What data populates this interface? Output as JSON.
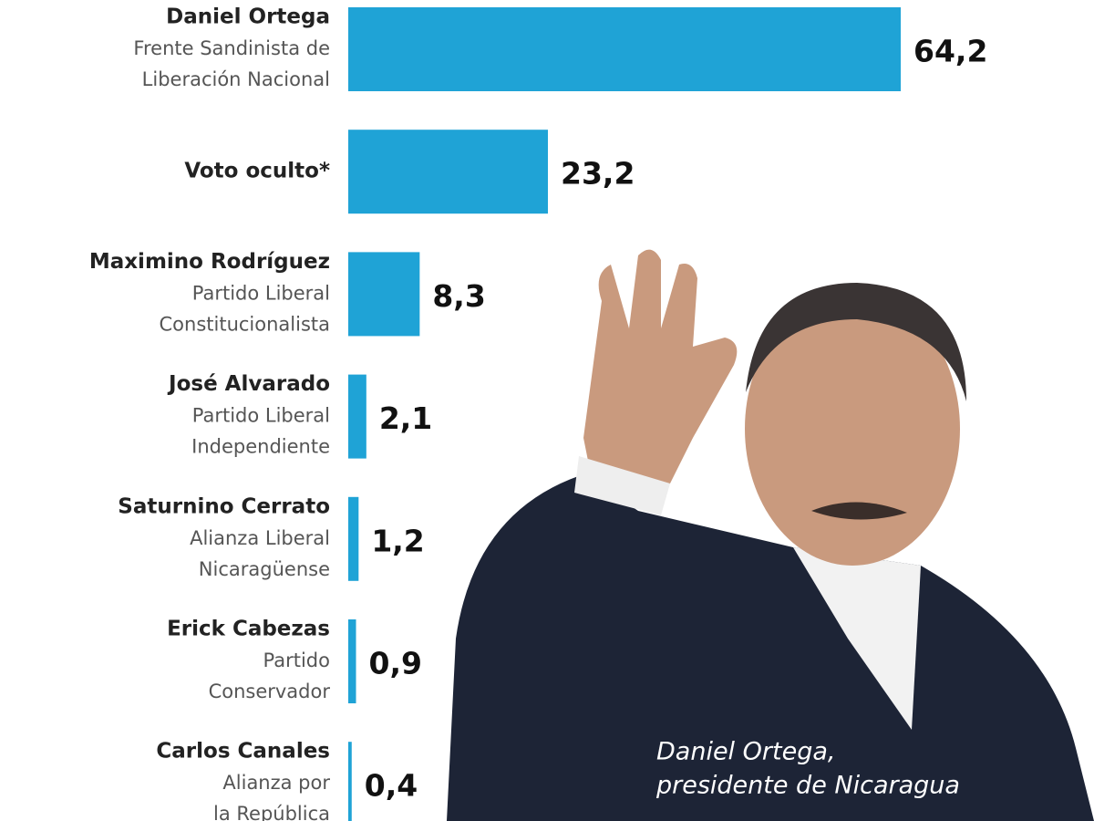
{
  "chart_data": {
    "type": "bar",
    "orientation": "horizontal",
    "color": "#1fa3d6",
    "categories": [
      "Daniel Ortega",
      "Voto oculto*",
      "Maximino Rodríguez",
      "José Alvarado",
      "Saturnino Cerrato",
      "Erick Cabezas",
      "Carlos Canales"
    ],
    "parties": [
      [
        "Frente Sandinista de",
        "Liberación Nacional"
      ],
      null,
      [
        "Partido Liberal",
        "Constitucionalista"
      ],
      [
        "Partido Liberal",
        "Independiente"
      ],
      [
        "Alianza Liberal",
        "Nicaragüense"
      ],
      [
        "Partido",
        "Conservador"
      ],
      [
        "Alianza por",
        "la República"
      ]
    ],
    "values": [
      64.2,
      23.2,
      8.3,
      2.1,
      1.2,
      0.9,
      0.4
    ],
    "value_labels": [
      "64,2",
      "23,2",
      "8,3",
      "2,1",
      "1,2",
      "0,9",
      "0,4"
    ],
    "caption": [
      "Daniel Ortega,",
      "presidente de Nicaragua"
    ]
  }
}
